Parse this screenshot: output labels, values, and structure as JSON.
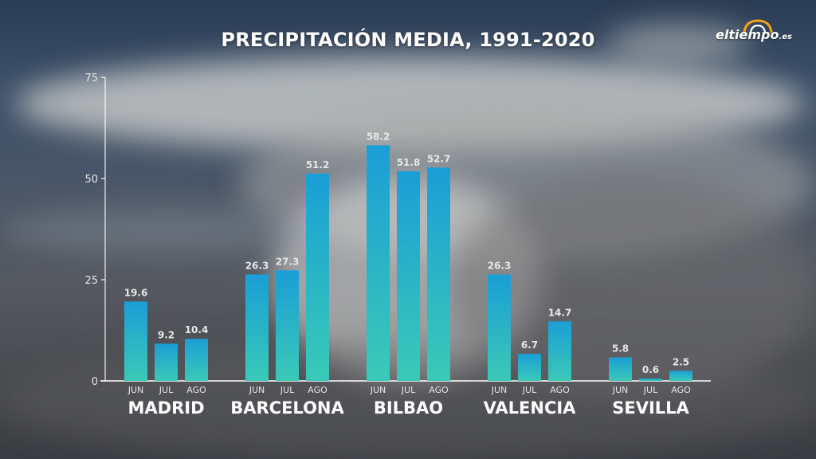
{
  "title": "PRECIPITACIÓN MEDIA, 1991-2020",
  "logo": {
    "main": "eltiempo",
    "domain": ".es"
  },
  "colors": {
    "bar_top": "#1a9ed6",
    "bar_bottom": "#3bc9b7",
    "axis": "#ffffff",
    "label": "#e6e6e6",
    "city": "#ffffff",
    "sun": "#f6a21c"
  },
  "chart_data": {
    "type": "bar",
    "title": "PRECIPITACIÓN MEDIA, 1991-2020",
    "ylim": [
      0,
      75
    ],
    "yticks": [
      "0",
      "25",
      "50",
      "75"
    ],
    "grid": false,
    "groups": [
      {
        "name": "MADRID",
        "categories": [
          "JUN",
          "JUL",
          "AGO"
        ],
        "values": [
          19.6,
          9.2,
          10.4
        ],
        "labels": [
          "19.6",
          "9.2",
          "10.4"
        ]
      },
      {
        "name": "BARCELONA",
        "categories": [
          "JUN",
          "JUL",
          "AGO"
        ],
        "values": [
          26.3,
          27.3,
          51.2
        ],
        "labels": [
          "26.3",
          "27.3",
          "51.2"
        ]
      },
      {
        "name": "BILBAO",
        "categories": [
          "JUN",
          "JUL",
          "AGO"
        ],
        "values": [
          58.2,
          51.8,
          52.7
        ],
        "labels": [
          "58.2",
          "51.8",
          "52.7"
        ]
      },
      {
        "name": "VALENCIA",
        "categories": [
          "JUN",
          "JUL",
          "AGO"
        ],
        "values": [
          26.3,
          6.7,
          14.7
        ],
        "labels": [
          "26.3",
          "6.7",
          "14.7"
        ]
      },
      {
        "name": "SEVILLA",
        "categories": [
          "JUN",
          "JUL",
          "AGO"
        ],
        "values": [
          5.8,
          0.6,
          2.5
        ],
        "labels": [
          "5.8",
          "0.6",
          "2.5"
        ]
      }
    ]
  }
}
